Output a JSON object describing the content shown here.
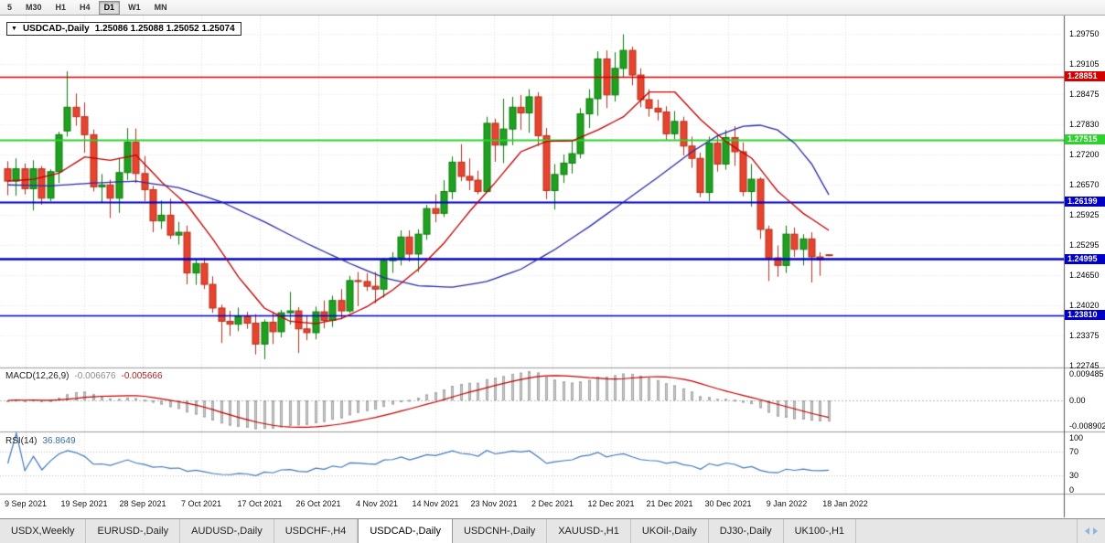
{
  "icons": {
    "chevron_down": "▼"
  },
  "colors": {
    "bull": "#1fa11f",
    "bull_border": "#0c7a0c",
    "bear": "#e8432d",
    "bear_border": "#b2311c",
    "ma_fast": "#c00000",
    "ma_slow": "#2b2ba6",
    "macd_hist": "#cccccc",
    "macd_hist_border": "#a6a6a6",
    "macd_signal": "#c00000",
    "rsi": "#4279b8",
    "grid": "#dcdcdc",
    "hgrid": "#e9e9e9"
  },
  "toolbar": {
    "timeframes": [
      {
        "label": "5",
        "active": false
      },
      {
        "label": "M30",
        "active": false
      },
      {
        "label": "H1",
        "active": false
      },
      {
        "label": "H4",
        "active": false
      },
      {
        "label": "D1",
        "active": true
      },
      {
        "label": "W1",
        "active": false
      },
      {
        "label": "MN",
        "active": false
      }
    ]
  },
  "chart_header": {
    "symbol_label": "USDCAD-,Daily",
    "ohlc_text": "1.25086 1.25088 1.25052 1.25074"
  },
  "price_axis_labels": [
    "1.29750",
    "1.29105",
    "1.28475",
    "1.27830",
    "1.27200",
    "1.26570",
    "1.25925",
    "1.25295",
    "1.24650",
    "1.24020",
    "1.23375",
    "1.22745"
  ],
  "hlines": [
    {
      "price": 1.28851,
      "label": "1.28851",
      "color": "#d40000",
      "width": 1.4
    },
    {
      "price": 1.27515,
      "label": "1.27515",
      "color": "#2ed22e",
      "width": 2
    },
    {
      "price": 1.26199,
      "label": "1.26199",
      "color": "#0000c8",
      "width": 2
    },
    {
      "price": 1.24995,
      "label": "1.24995",
      "color": "#0000c8",
      "width": 2.6
    },
    {
      "price": 1.2381,
      "label": "1.23810",
      "color": "#0000c8",
      "width": 1.6
    }
  ],
  "indicator_panels": {
    "macd": {
      "name": "MACD(12,26,9)",
      "value_main": "-0.006676",
      "value_signal": "-0.005666",
      "axis_labels": [
        "0.009485",
        "0.00",
        "-0.008902"
      ]
    },
    "rsi": {
      "name": "RSI(14)",
      "value": "36.8649",
      "axis_labels": [
        "100",
        "70",
        "30",
        "0"
      ],
      "levels": [
        70,
        30
      ]
    }
  },
  "date_axis_labels": [
    "9 Sep 2021",
    "19 Sep 2021",
    "28 Sep 2021",
    "7 Oct 2021",
    "17 Oct 2021",
    "26 Oct 2021",
    "4 Nov 2021",
    "14 Nov 2021",
    "23 Nov 2021",
    "2 Dec 2021",
    "12 Dec 2021",
    "21 Dec 2021",
    "30 Dec 2021",
    "9 Jan 2022",
    "18 Jan 2022"
  ],
  "tabs": [
    {
      "label": "USDX,Weekly",
      "active": false
    },
    {
      "label": "EURUSD-,Daily",
      "active": false
    },
    {
      "label": "AUDUSD-,Daily",
      "active": false
    },
    {
      "label": "USDCHF-,H4",
      "active": false
    },
    {
      "label": "USDCAD-,Daily",
      "active": true
    },
    {
      "label": "USDCNH-,Daily",
      "active": false
    },
    {
      "label": "XAUUSD-,H1",
      "active": false
    },
    {
      "label": "UKOil-,Daily",
      "active": false
    },
    {
      "label": "DJ30-,Daily",
      "active": false
    },
    {
      "label": "UK100-,H1",
      "active": false
    }
  ],
  "chart_data": {
    "type": "candlestick",
    "symbol": "USDCAD",
    "timeframe": "Daily",
    "price_axis_range": [
      1.22705,
      1.30136
    ],
    "candles": [
      [
        1.269,
        1.2706,
        1.2634,
        1.2664
      ],
      [
        1.2664,
        1.2712,
        1.2633,
        1.269
      ],
      [
        1.269,
        1.2701,
        1.2636,
        1.2648
      ],
      [
        1.2648,
        1.2708,
        1.2602,
        1.269
      ],
      [
        1.269,
        1.2696,
        1.2614,
        1.2628
      ],
      [
        1.2628,
        1.2689,
        1.2622,
        1.2684
      ],
      [
        1.2684,
        1.2768,
        1.266,
        1.2762
      ],
      [
        1.277,
        1.2896,
        1.2758,
        1.282
      ],
      [
        1.282,
        1.2849,
        1.2781,
        1.28
      ],
      [
        1.28,
        1.283,
        1.2724,
        1.2762
      ],
      [
        1.2762,
        1.2773,
        1.2642,
        1.2652
      ],
      [
        1.2652,
        1.2679,
        1.2618,
        1.2656
      ],
      [
        1.2656,
        1.2667,
        1.2586,
        1.2628
      ],
      [
        1.2628,
        1.2713,
        1.2597,
        1.2682
      ],
      [
        1.2682,
        1.2776,
        1.2666,
        1.2746
      ],
      [
        1.2746,
        1.2775,
        1.266,
        1.268
      ],
      [
        1.268,
        1.2717,
        1.2622,
        1.2646
      ],
      [
        1.2646,
        1.2654,
        1.2556,
        1.258
      ],
      [
        1.258,
        1.2623,
        1.2563,
        1.2592
      ],
      [
        1.2592,
        1.2627,
        1.2542,
        1.255
      ],
      [
        1.255,
        1.2578,
        1.253,
        1.2556
      ],
      [
        1.2556,
        1.257,
        1.2446,
        1.247
      ],
      [
        1.247,
        1.2499,
        1.2445,
        1.249
      ],
      [
        1.249,
        1.2502,
        1.2436,
        1.2446
      ],
      [
        1.2446,
        1.2463,
        1.2386,
        1.2396
      ],
      [
        1.2396,
        1.2403,
        1.2322,
        1.2368
      ],
      [
        1.2368,
        1.239,
        1.2337,
        1.2362
      ],
      [
        1.2362,
        1.2397,
        1.2347,
        1.2378
      ],
      [
        1.2378,
        1.2388,
        1.2352,
        1.2364
      ],
      [
        1.2364,
        1.2383,
        1.2298,
        1.232
      ],
      [
        1.232,
        1.2372,
        1.2288,
        1.2366
      ],
      [
        1.2366,
        1.2388,
        1.232,
        1.2346
      ],
      [
        1.2346,
        1.2392,
        1.2334,
        1.2386
      ],
      [
        1.2386,
        1.243,
        1.2361,
        1.239
      ],
      [
        1.239,
        1.2398,
        1.2301,
        1.2352
      ],
      [
        1.2352,
        1.2381,
        1.2328,
        1.2344
      ],
      [
        1.2344,
        1.2399,
        1.233,
        1.2388
      ],
      [
        1.2388,
        1.2412,
        1.2353,
        1.237
      ],
      [
        1.237,
        1.2422,
        1.2356,
        1.2412
      ],
      [
        1.2412,
        1.2436,
        1.2372,
        1.239
      ],
      [
        1.239,
        1.2464,
        1.2386,
        1.2454
      ],
      [
        1.2454,
        1.2472,
        1.24,
        1.2452
      ],
      [
        1.2452,
        1.247,
        1.2432,
        1.2442
      ],
      [
        1.2442,
        1.2472,
        1.2406,
        1.2436
      ],
      [
        1.2436,
        1.2502,
        1.2418,
        1.2496
      ],
      [
        1.2496,
        1.2514,
        1.247,
        1.2502
      ],
      [
        1.2502,
        1.256,
        1.2486,
        1.2546
      ],
      [
        1.2546,
        1.256,
        1.2494,
        1.251
      ],
      [
        1.251,
        1.2562,
        1.2472,
        1.2552
      ],
      [
        1.2552,
        1.2614,
        1.254,
        1.2606
      ],
      [
        1.2606,
        1.2636,
        1.2577,
        1.2596
      ],
      [
        1.2596,
        1.2666,
        1.2588,
        1.2642
      ],
      [
        1.2642,
        1.2716,
        1.2626,
        1.2704
      ],
      [
        1.2704,
        1.2742,
        1.2664,
        1.2674
      ],
      [
        1.2674,
        1.2712,
        1.2645,
        1.2666
      ],
      [
        1.2666,
        1.2686,
        1.2636,
        1.2642
      ],
      [
        1.2642,
        1.28,
        1.264,
        1.2786
      ],
      [
        1.2786,
        1.2796,
        1.2705,
        1.274
      ],
      [
        1.274,
        1.2838,
        1.2702,
        1.2774
      ],
      [
        1.2774,
        1.2842,
        1.274,
        1.282
      ],
      [
        1.282,
        1.2846,
        1.2772,
        1.2808
      ],
      [
        1.2808,
        1.2858,
        1.2766,
        1.2842
      ],
      [
        1.2842,
        1.2852,
        1.2738,
        1.276
      ],
      [
        1.276,
        1.2776,
        1.2626,
        1.2644
      ],
      [
        1.2644,
        1.27,
        1.2604,
        1.2678
      ],
      [
        1.2678,
        1.272,
        1.266,
        1.2702
      ],
      [
        1.2702,
        1.275,
        1.268,
        1.2722
      ],
      [
        1.2722,
        1.2818,
        1.2712,
        1.2806
      ],
      [
        1.2806,
        1.2858,
        1.2776,
        1.2838
      ],
      [
        1.2838,
        1.2938,
        1.2802,
        1.2922
      ],
      [
        1.2922,
        1.294,
        1.2818,
        1.2846
      ],
      [
        1.2846,
        1.2936,
        1.2832,
        1.2902
      ],
      [
        1.2902,
        1.2974,
        1.2882,
        1.294
      ],
      [
        1.294,
        1.2948,
        1.2866,
        1.2888
      ],
      [
        1.2888,
        1.2902,
        1.282,
        1.2836
      ],
      [
        1.2836,
        1.2858,
        1.28,
        1.2818
      ],
      [
        1.2818,
        1.2836,
        1.2792,
        1.281
      ],
      [
        1.281,
        1.2822,
        1.275,
        1.2764
      ],
      [
        1.2764,
        1.2812,
        1.2752,
        1.279
      ],
      [
        1.279,
        1.28,
        1.2718,
        1.2738
      ],
      [
        1.2738,
        1.2758,
        1.2692,
        1.2712
      ],
      [
        1.2712,
        1.2724,
        1.263,
        1.264
      ],
      [
        1.264,
        1.2758,
        1.2622,
        1.2744
      ],
      [
        1.2744,
        1.276,
        1.2684,
        1.27
      ],
      [
        1.27,
        1.2772,
        1.2688,
        1.2756
      ],
      [
        1.2756,
        1.278,
        1.2696,
        1.2726
      ],
      [
        1.2726,
        1.2746,
        1.2632,
        1.2642
      ],
      [
        1.2642,
        1.27,
        1.261,
        1.2668
      ],
      [
        1.2668,
        1.2672,
        1.2542,
        1.2562
      ],
      [
        1.2562,
        1.257,
        1.2453,
        1.2502
      ],
      [
        1.2502,
        1.2528,
        1.2462,
        1.2486
      ],
      [
        1.2486,
        1.257,
        1.247,
        1.2552
      ],
      [
        1.2552,
        1.2566,
        1.2504,
        1.252
      ],
      [
        1.252,
        1.2552,
        1.2486,
        1.2542
      ],
      [
        1.2542,
        1.2556,
        1.245,
        1.2504
      ],
      [
        1.2504,
        1.2514,
        1.2464,
        1.2498
      ],
      [
        1.25086,
        1.25088,
        1.25052,
        1.25074
      ]
    ],
    "moving_averages": [
      {
        "name": "ma-fast",
        "color": "#c00000",
        "points": [
          [
            0,
            1.2664
          ],
          [
            3,
            1.2668
          ],
          [
            6,
            1.2681
          ],
          [
            9,
            1.2715
          ],
          [
            12,
            1.2708
          ],
          [
            15,
            1.2719
          ],
          [
            18,
            1.2662
          ],
          [
            21,
            1.2613
          ],
          [
            24,
            1.2541
          ],
          [
            27,
            1.2461
          ],
          [
            30,
            1.2396
          ],
          [
            33,
            1.2368
          ],
          [
            36,
            1.2363
          ],
          [
            39,
            1.2374
          ],
          [
            42,
            1.2399
          ],
          [
            45,
            1.2434
          ],
          [
            48,
            1.2478
          ],
          [
            51,
            1.2533
          ],
          [
            54,
            1.26
          ],
          [
            57,
            1.2661
          ],
          [
            60,
            1.2726
          ],
          [
            63,
            1.2748
          ],
          [
            66,
            1.2749
          ],
          [
            69,
            1.2772
          ],
          [
            72,
            1.28
          ],
          [
            75,
            1.2852
          ],
          [
            78,
            1.2852
          ],
          [
            81,
            1.2794
          ],
          [
            84,
            1.2747
          ],
          [
            87,
            1.2712
          ],
          [
            90,
            1.2643
          ],
          [
            93,
            1.2596
          ],
          [
            96,
            1.256
          ]
        ]
      },
      {
        "name": "ma-slow",
        "color": "#2b2ba6",
        "points": [
          [
            0,
            1.2656
          ],
          [
            5,
            1.2654
          ],
          [
            10,
            1.266
          ],
          [
            15,
            1.2664
          ],
          [
            20,
            1.265
          ],
          [
            25,
            1.262
          ],
          [
            30,
            1.2578
          ],
          [
            35,
            1.2532
          ],
          [
            40,
            1.249
          ],
          [
            44,
            1.246
          ],
          [
            48,
            1.2443
          ],
          [
            52,
            1.244
          ],
          [
            56,
            1.2452
          ],
          [
            60,
            1.2478
          ],
          [
            64,
            1.252
          ],
          [
            68,
            1.2568
          ],
          [
            72,
            1.262
          ],
          [
            76,
            1.2672
          ],
          [
            80,
            1.2726
          ],
          [
            83,
            1.276
          ],
          [
            86,
            1.278
          ],
          [
            88,
            1.2782
          ],
          [
            90,
            1.2772
          ],
          [
            92,
            1.2744
          ],
          [
            94,
            1.27
          ],
          [
            96,
            1.2635
          ]
        ]
      }
    ],
    "horizontal_levels": [
      1.28851,
      1.27515,
      1.26199,
      1.24995,
      1.2381
    ],
    "macd": {
      "fast": 12,
      "slow": 26,
      "signal": 9,
      "scale_max": 0.009485,
      "scale_min": -0.008902,
      "last_main": -0.006676,
      "last_signal": -0.005666
    },
    "rsi": {
      "period": 14,
      "last": 36.8649,
      "levels": [
        70,
        30
      ]
    }
  }
}
